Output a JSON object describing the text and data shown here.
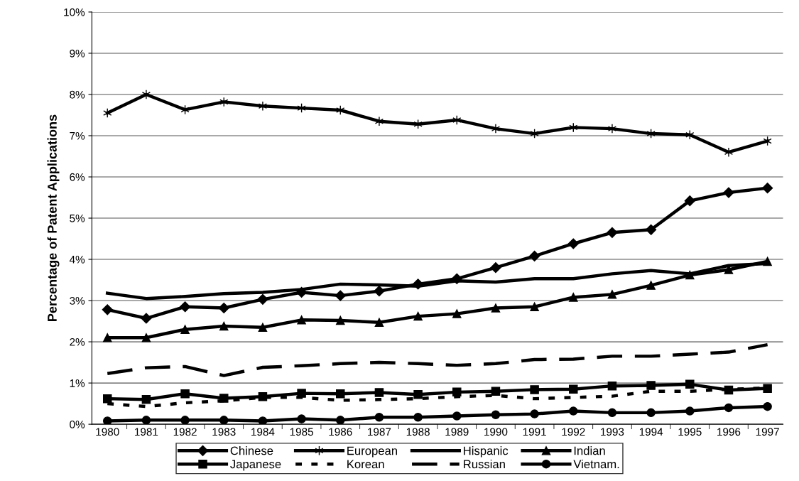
{
  "chart_data": {
    "type": "line",
    "ylabel": "Percentage of Patent Applications",
    "categories": [
      "1980",
      "1981",
      "1982",
      "1983",
      "1984",
      "1985",
      "1986",
      "1987",
      "1988",
      "1989",
      "1990",
      "1991",
      "1992",
      "1993",
      "1994",
      "1995",
      "1996",
      "1997"
    ],
    "ylim": [
      0,
      10
    ],
    "yticks": [
      {
        "value": 0,
        "label": "0%"
      },
      {
        "value": 1,
        "label": "1%"
      },
      {
        "value": 2,
        "label": "2%"
      },
      {
        "value": 3,
        "label": "3%"
      },
      {
        "value": 4,
        "label": "4%"
      },
      {
        "value": 5,
        "label": "5%"
      },
      {
        "value": 6,
        "label": "6%"
      },
      {
        "value": 7,
        "label": "7%"
      },
      {
        "value": 8,
        "label": "8%"
      },
      {
        "value": 9,
        "label": "9%"
      },
      {
        "value": 10,
        "label": "10%"
      }
    ],
    "grid": "y",
    "legend": "bottom",
    "series": [
      {
        "name": "Chinese",
        "color": "#000000",
        "marker": "diamond",
        "line_style": "solid",
        "values": [
          2.78,
          2.57,
          2.85,
          2.82,
          3.03,
          3.2,
          3.12,
          3.23,
          3.4,
          3.53,
          3.8,
          4.08,
          4.38,
          4.65,
          4.72,
          5.42,
          5.62,
          5.73
        ]
      },
      {
        "name": "European",
        "color": "#000000",
        "marker": "cross",
        "line_style": "solid",
        "values": [
          7.55,
          8.0,
          7.63,
          7.82,
          7.72,
          7.67,
          7.62,
          7.35,
          7.28,
          7.38,
          7.17,
          7.05,
          7.2,
          7.17,
          7.05,
          7.02,
          6.6,
          6.87
        ]
      },
      {
        "name": "Hispanic",
        "color": "#000000",
        "marker": "none",
        "line_style": "solid",
        "values": [
          3.18,
          3.05,
          3.1,
          3.17,
          3.2,
          3.27,
          3.4,
          3.38,
          3.35,
          3.48,
          3.45,
          3.53,
          3.53,
          3.65,
          3.73,
          3.65,
          3.85,
          3.9
        ]
      },
      {
        "name": "Indian",
        "color": "#000000",
        "marker": "triangle",
        "line_style": "solid",
        "values": [
          2.1,
          2.1,
          2.3,
          2.38,
          2.35,
          2.53,
          2.52,
          2.47,
          2.62,
          2.68,
          2.82,
          2.85,
          3.08,
          3.15,
          3.37,
          3.62,
          3.75,
          3.95
        ]
      },
      {
        "name": "Japanese",
        "color": "#000000",
        "marker": "square",
        "line_style": "solid",
        "values": [
          0.62,
          0.6,
          0.74,
          0.63,
          0.67,
          0.75,
          0.74,
          0.77,
          0.72,
          0.78,
          0.8,
          0.84,
          0.85,
          0.93,
          0.94,
          0.97,
          0.83,
          0.87
        ]
      },
      {
        "name": "Korean",
        "color": "#000000",
        "marker": "none",
        "line_style": "dotted",
        "values": [
          0.5,
          0.43,
          0.52,
          0.57,
          0.65,
          0.65,
          0.58,
          0.6,
          0.62,
          0.67,
          0.7,
          0.62,
          0.65,
          0.68,
          0.8,
          0.8,
          0.85,
          0.88
        ]
      },
      {
        "name": "Russian",
        "color": "#000000",
        "marker": "none",
        "line_style": "dashed",
        "values": [
          1.23,
          1.37,
          1.4,
          1.18,
          1.38,
          1.42,
          1.47,
          1.5,
          1.47,
          1.43,
          1.47,
          1.57,
          1.58,
          1.65,
          1.65,
          1.7,
          1.75,
          1.93
        ]
      },
      {
        "name": "Vietnam.",
        "color": "#000000",
        "marker": "circle",
        "line_style": "solid",
        "values": [
          0.08,
          0.1,
          0.1,
          0.1,
          0.08,
          0.13,
          0.1,
          0.17,
          0.17,
          0.2,
          0.23,
          0.25,
          0.32,
          0.28,
          0.28,
          0.32,
          0.4,
          0.43
        ]
      }
    ]
  }
}
